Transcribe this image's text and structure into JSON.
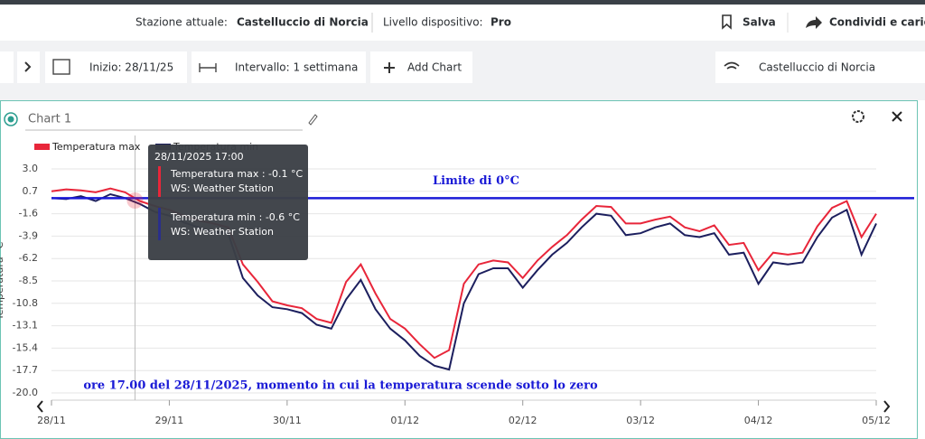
{
  "header": {
    "station_label": "Stazione attuale:",
    "station": "Castelluccio di Norcia",
    "level_label": "Livello dispositivo:",
    "level": "Pro",
    "save": "Salva",
    "share": "Condividi e carica"
  },
  "toolbar": {
    "start": "Inizio: 28/11/25",
    "interval": "Intervallo: 1 settimana",
    "add_chart": "Add Chart",
    "station": "Castelluccio di Norcia"
  },
  "card": {
    "title": "Chart 1"
  },
  "tooltip": {
    "title": "28/11/2025 17:00",
    "lines": [
      "Temperatura max : -0.1 °C",
      "WS: Weather Station",
      "Temperatura min : -0.6 °C",
      "WS: Weather Station"
    ]
  },
  "chart_data": {
    "type": "line",
    "ylabel": "Temperatura °C",
    "categories": [
      "28/11",
      null,
      null,
      null,
      null,
      null,
      null,
      null,
      "29/11",
      null,
      null,
      null,
      null,
      null,
      null,
      null,
      "30/11",
      null,
      null,
      null,
      null,
      null,
      null,
      null,
      "01/12",
      null,
      null,
      null,
      null,
      null,
      null,
      null,
      "02/12",
      null,
      null,
      null,
      null,
      null,
      null,
      null,
      "03/12",
      null,
      null,
      null,
      null,
      null,
      null,
      null,
      "04/12",
      null,
      null,
      null,
      null,
      null,
      null,
      null,
      "05/12"
    ],
    "series": [
      {
        "name": "Temperatura max",
        "color": "#e8263a",
        "values": [
          0.7,
          0.9,
          0.8,
          0.6,
          1.0,
          0.6,
          -0.3,
          -0.8,
          -1.2,
          -1.8,
          -2.3,
          -2.6,
          -3.0,
          -6.8,
          -8.6,
          -10.6,
          -11.0,
          -11.3,
          -12.4,
          -12.8,
          -8.6,
          -6.8,
          -9.8,
          -12.4,
          -13.4,
          -15.0,
          -16.4,
          -15.6,
          -8.8,
          -6.8,
          -6.4,
          -6.6,
          -8.2,
          -6.4,
          -5.0,
          -3.8,
          -2.2,
          -0.8,
          -0.9,
          -2.6,
          -2.6,
          -2.2,
          -1.9,
          -3.0,
          -3.4,
          -2.8,
          -4.8,
          -4.6,
          -7.4,
          -5.6,
          -5.8,
          -5.6,
          -2.9,
          -1.0,
          -0.3,
          -4.0,
          -1.6
        ]
      },
      {
        "name": "Temperatura min",
        "color": "#1c1f5e",
        "values": [
          0.0,
          -0.1,
          0.2,
          -0.3,
          0.4,
          0.0,
          -0.6,
          -1.4,
          -1.8,
          -2.5,
          -3.0,
          -3.5,
          -3.6,
          -8.2,
          -10.0,
          -11.2,
          -11.4,
          -11.8,
          -13.0,
          -13.4,
          -10.4,
          -8.4,
          -11.4,
          -13.4,
          -14.6,
          -16.2,
          -17.2,
          -17.6,
          -10.8,
          -7.8,
          -7.2,
          -7.2,
          -9.2,
          -7.4,
          -5.8,
          -4.6,
          -3.0,
          -1.6,
          -1.8,
          -3.8,
          -3.6,
          -3.0,
          -2.6,
          -3.8,
          -4.0,
          -3.6,
          -5.8,
          -5.6,
          -8.8,
          -6.6,
          -6.8,
          -6.6,
          -4.0,
          -2.0,
          -1.2,
          -5.8,
          -2.6
        ]
      }
    ],
    "ylim": [
      -20,
      3
    ],
    "yticks": [
      {
        "value": 3,
        "label": "3.0"
      },
      0.7,
      -1.6,
      -3.9,
      -6.2,
      -8.5,
      -10.8,
      -13.1,
      -15.4,
      -17.7,
      {
        "value": -20,
        "label": "-20.0"
      }
    ],
    "grid": true,
    "reference_line": {
      "value": 0,
      "label": "Limite di 0°C",
      "color": "#1a1ad6"
    },
    "annotation": "ore 17.00 del 28/11/2025, momento in cui la temperatura scende sotto lo zero"
  }
}
